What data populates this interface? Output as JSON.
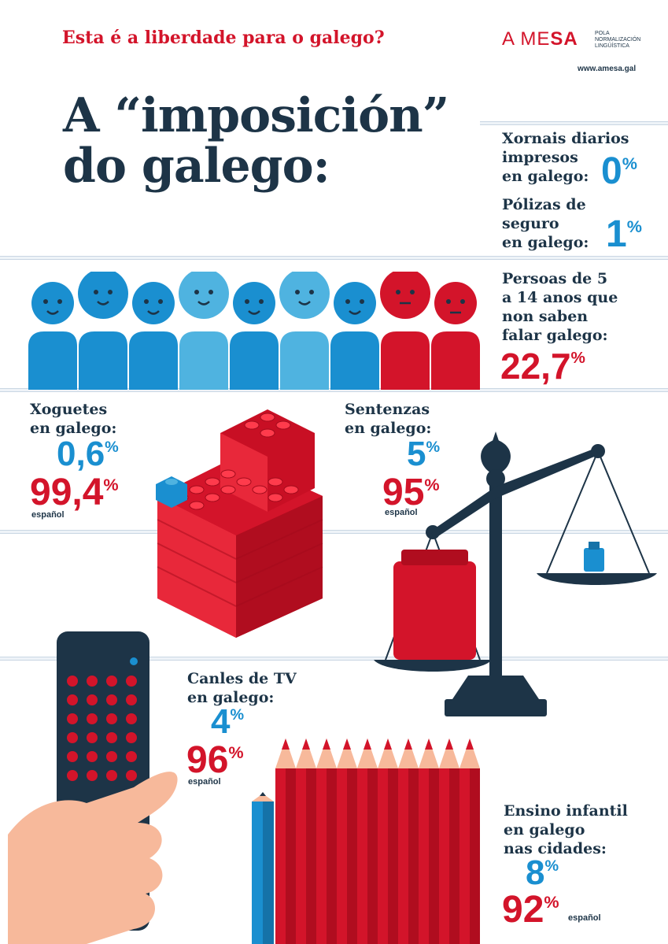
{
  "header": {
    "kicker": "Esta é a liberdade para o galego?",
    "logo_a": "A",
    "logo_me": "ME",
    "logo_sa": "SA",
    "logo_sub_1": "POLA",
    "logo_sub_2": "NORMALIZACIÓN",
    "logo_sub_3": "LINGÜÍSTICA",
    "url": "www.amesa.gal",
    "headline_line1": "A “imposición”",
    "headline_line2": "do galego:"
  },
  "stats": {
    "xornais": {
      "l1": "Xornais diarios",
      "l2": "impresos",
      "l3": "en galego:",
      "value": "0",
      "pct": "%"
    },
    "polizas": {
      "l1": "Pólizas de",
      "l2": "seguro",
      "l3": "en galego:",
      "value": "1",
      "pct": "%"
    },
    "persoas": {
      "l1": "Persoas de 5",
      "l2": "a 14 anos que",
      "l3": "non saben",
      "l4": "falar galego:",
      "value": "22,7",
      "pct": "%"
    },
    "xoguetes": {
      "l1": "Xoguetes",
      "l2": "en galego:",
      "value_gl": "0,6",
      "value_es": "99,4",
      "pct": "%",
      "es_label": "español"
    },
    "sentenzas": {
      "l1": "Sentenzas",
      "l2": "en galego:",
      "value_gl": "5",
      "value_es": "95",
      "pct": "%",
      "es_label": "español"
    },
    "canles": {
      "l1": "Canles de TV",
      "l2": "en galego:",
      "value_gl": "4",
      "value_es": "96",
      "pct": "%",
      "es_label": "español"
    },
    "ensino": {
      "l1": "Ensino infantil",
      "l2": "en galego",
      "l3": "nas cidades:",
      "value_gl": "8",
      "value_es": "92",
      "pct": "%",
      "es_label": "español"
    }
  },
  "colors": {
    "red": "#d3142a",
    "blue": "#1a8fd0",
    "light_blue": "#4fb3e0",
    "navy": "#1d3447",
    "skin": "#f7b99b"
  },
  "people": [
    "blue",
    "blue",
    "blue",
    "light-blue",
    "blue",
    "light-blue",
    "blue",
    "red",
    "red"
  ]
}
